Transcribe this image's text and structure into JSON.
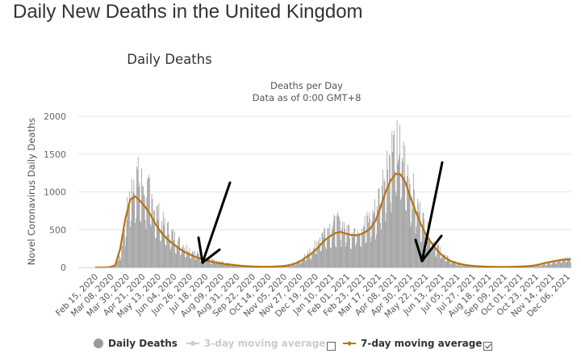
{
  "page": {
    "title": "Daily New Deaths in the United Kingdom"
  },
  "chart_data": {
    "type": "bar",
    "title": "Daily Deaths",
    "subtitle_lines": [
      "Deaths per Day",
      "Data as of 0:00 GMT+8"
    ],
    "xlabel": "",
    "ylabel": "Novel Coronavirus Daily Deaths",
    "ylim": [
      0,
      2000
    ],
    "yticks": [
      0,
      500,
      1000,
      1500,
      2000
    ],
    "grid": true,
    "x_start_date": "2020-02-15",
    "x_end_date": "2021-12-14",
    "xtick_labels": [
      "Feb 15, 2020",
      "Mar 08, 2020",
      "Mar 30, 2020",
      "Apr 21, 2020",
      "May 13, 2020",
      "Jun 04, 2020",
      "Jun 26, 2020",
      "Jul 18, 2020",
      "Aug 09, 2020",
      "Aug 31, 2020",
      "Sep 22, 2020",
      "Oct 14, 2020",
      "Nov 05, 2020",
      "Nov 27, 2020",
      "Dec 19, 2020",
      "Jan 10, 2021",
      "Feb 01, 2021",
      "Feb 23, 2021",
      "Mar 17, 2021",
      "Apr 08, 2021",
      "Apr 30, 2021",
      "May 22, 2021",
      "Jun 13, 2021",
      "Jul 05, 2021",
      "Jul 27, 2021",
      "Aug 18, 2021",
      "Sep 09, 2021",
      "Oct 01, 2021",
      "Oct 23, 2021",
      "Nov 14, 2021",
      "Dec 06, 2021"
    ],
    "xtick_interval_days": 22,
    "series": [
      {
        "name": "Daily Deaths",
        "kind": "bar",
        "color": "#999999",
        "weekly_start_date": "2020-02-15",
        "weekly_values_approx": [
          0,
          0,
          0,
          2,
          20,
          150,
          500,
          850,
          1050,
          950,
          900,
          800,
          650,
          550,
          450,
          400,
          330,
          280,
          230,
          200,
          160,
          130,
          110,
          90,
          70,
          60,
          50,
          40,
          30,
          20,
          15,
          12,
          10,
          10,
          8,
          10,
          12,
          15,
          20,
          30,
          50,
          80,
          130,
          180,
          250,
          350,
          420,
          460,
          480,
          500,
          450,
          420,
          430,
          460,
          500,
          560,
          650,
          850,
          1100,
          1300,
          1350,
          1300,
          1150,
          950,
          750,
          600,
          450,
          350,
          250,
          180,
          120,
          80,
          60,
          40,
          30,
          20,
          15,
          12,
          10,
          8,
          8,
          7,
          7,
          8,
          9,
          10,
          12,
          15,
          20,
          30,
          45,
          60,
          70,
          85,
          95,
          100,
          110,
          120,
          130,
          140,
          140,
          120,
          120,
          130,
          140,
          150,
          160,
          170,
          160,
          140,
          130,
          130,
          120
        ],
        "daily_spike_ratio_max": 1.5
      },
      {
        "name": "3-day moving average",
        "kind": "line",
        "color": "#cccccc",
        "visible": false
      },
      {
        "name": "7-day moving average",
        "kind": "line",
        "color": "#b8720f",
        "visible": true,
        "weekly_start_date": "2020-02-15",
        "weekly_values": [
          0,
          0,
          0,
          5,
          30,
          250,
          640,
          900,
          940,
          880,
          800,
          700,
          580,
          480,
          400,
          340,
          290,
          240,
          200,
          170,
          140,
          115,
          95,
          80,
          65,
          55,
          45,
          38,
          30,
          24,
          18,
          14,
          12,
          10,
          9,
          10,
          12,
          16,
          22,
          35,
          55,
          85,
          130,
          175,
          230,
          300,
          370,
          420,
          455,
          470,
          450,
          430,
          425,
          440,
          470,
          520,
          620,
          800,
          1000,
          1150,
          1240,
          1230,
          1120,
          920,
          740,
          580,
          440,
          340,
          250,
          180,
          125,
          85,
          62,
          45,
          32,
          24,
          18,
          14,
          11,
          9,
          8,
          7,
          7,
          8,
          10,
          12,
          15,
          20,
          30,
          45,
          62,
          75,
          88,
          98,
          105,
          110,
          115,
          125,
          135,
          148,
          150,
          135,
          125,
          130,
          140,
          150,
          165,
          170,
          160,
          145,
          135,
          135,
          130
        ]
      }
    ],
    "annotations": [
      {
        "type": "arrow",
        "points_to": "Aug 2020 trough"
      },
      {
        "type": "arrow",
        "points_to": "May 2021 trough"
      }
    ],
    "legend_position": "bottom"
  },
  "legend": {
    "items": [
      {
        "label": "Daily Deaths",
        "active": true
      },
      {
        "label": "3-day moving average",
        "active": false,
        "checkbox_checked": false
      },
      {
        "label": "7-day moving average",
        "active": true,
        "checkbox_checked": true
      }
    ]
  }
}
